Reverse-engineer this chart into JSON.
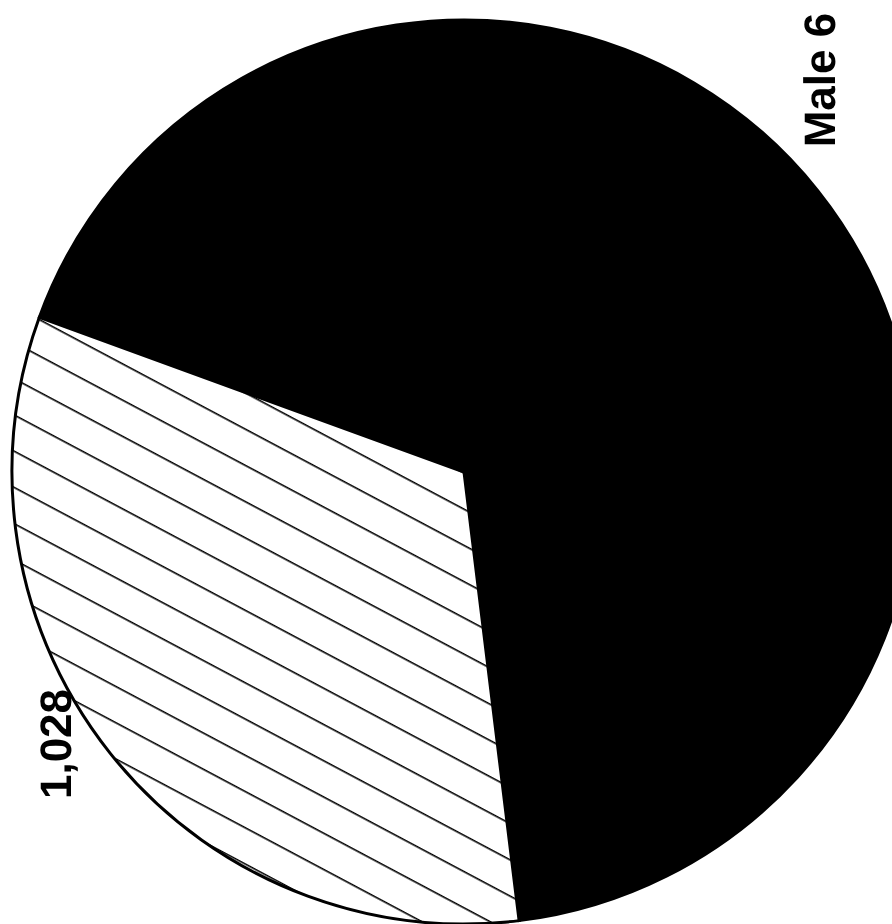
{
  "chart_data": {
    "type": "pie",
    "categories": [
      "Male 6",
      "1,028"
    ],
    "values": [
      67.5,
      32.5
    ],
    "colors": [
      "#000000",
      "#ffffff"
    ]
  }
}
